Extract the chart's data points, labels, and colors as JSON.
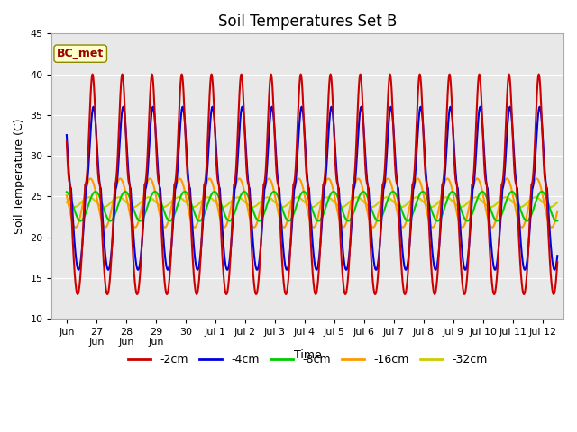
{
  "title": "Soil Temperatures Set B",
  "xlabel": "Time",
  "ylabel": "Soil Temperature (C)",
  "ylim": [
    10,
    45
  ],
  "colors": {
    "-2cm": "#cc0000",
    "-4cm": "#0000dd",
    "-8cm": "#00cc00",
    "-16cm": "#ff9900",
    "-32cm": "#cccc00"
  },
  "legend_labels": [
    "-2cm",
    "-4cm",
    "-8cm",
    "-16cm",
    "-32cm"
  ],
  "annotation_text": "BC_met",
  "annotation_color": "#990000",
  "annotation_bg": "#ffffcc",
  "annotation_edge": "#888800",
  "background_color": "#d8d8d8",
  "plot_bg": "#e8e8e8",
  "title_fontsize": 12,
  "label_fontsize": 9,
  "tick_fontsize": 8,
  "amp_2cm": 13.5,
  "mean_2cm": 26.5,
  "phase_2cm": 0.62,
  "amp_4cm": 10.0,
  "mean_4cm": 26.0,
  "phase_4cm": 0.65,
  "amp_8cm": 1.8,
  "mean_8cm": 23.8,
  "phase_8cm": 0.72,
  "amp_16cm": 3.0,
  "mean_16cm": 24.2,
  "phase_16cm": 0.55,
  "amp_32cm": 0.6,
  "mean_32cm": 24.3,
  "phase_32cm": 0.5
}
